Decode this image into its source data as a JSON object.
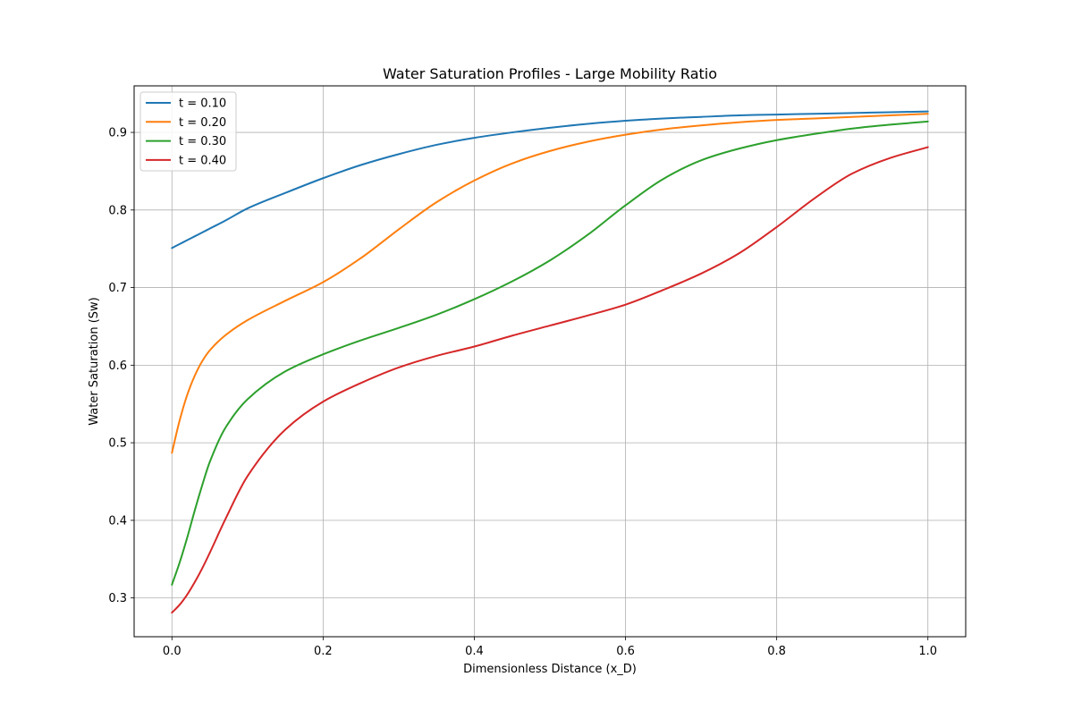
{
  "chart_data": {
    "type": "line",
    "title": "Water Saturation Profiles - Large Mobility Ratio",
    "xlabel": "Dimensionless Distance (x_D)",
    "ylabel": "Water Saturation (Sw)",
    "xlim": [
      -0.05,
      1.05
    ],
    "ylim": [
      0.25,
      0.96
    ],
    "xticks": [
      0.0,
      0.2,
      0.4,
      0.6,
      0.8,
      1.0
    ],
    "xtick_labels": [
      "0.0",
      "0.2",
      "0.4",
      "0.6",
      "0.8",
      "1.0"
    ],
    "yticks": [
      0.3,
      0.4,
      0.5,
      0.6,
      0.7,
      0.8,
      0.9
    ],
    "ytick_labels": [
      "0.3",
      "0.4",
      "0.5",
      "0.6",
      "0.7",
      "0.8",
      "0.9"
    ],
    "grid": true,
    "legend_position": "upper-left",
    "x": [
      0.0,
      0.01,
      0.02,
      0.03,
      0.04,
      0.05,
      0.07,
      0.1,
      0.15,
      0.2,
      0.25,
      0.3,
      0.35,
      0.4,
      0.45,
      0.5,
      0.55,
      0.6,
      0.65,
      0.7,
      0.75,
      0.8,
      0.85,
      0.9,
      0.95,
      1.0
    ],
    "series": [
      {
        "name": "t = 0.10",
        "color": "#1f77b4",
        "values": [
          0.751,
          0.756,
          0.761,
          0.766,
          0.771,
          0.776,
          0.786,
          0.802,
          0.822,
          0.841,
          0.858,
          0.872,
          0.884,
          0.893,
          0.9,
          0.906,
          0.911,
          0.915,
          0.918,
          0.92,
          0.922,
          0.923,
          0.924,
          0.925,
          0.926,
          0.927
        ]
      },
      {
        "name": "t = 0.20",
        "color": "#ff7f0e",
        "values": [
          0.487,
          0.528,
          0.561,
          0.586,
          0.605,
          0.619,
          0.638,
          0.658,
          0.683,
          0.707,
          0.738,
          0.775,
          0.81,
          0.838,
          0.86,
          0.876,
          0.888,
          0.897,
          0.904,
          0.909,
          0.913,
          0.916,
          0.918,
          0.92,
          0.922,
          0.924
        ]
      },
      {
        "name": "t = 0.30",
        "color": "#2ca02c",
        "values": [
          0.317,
          0.345,
          0.377,
          0.412,
          0.445,
          0.475,
          0.518,
          0.556,
          0.592,
          0.614,
          0.632,
          0.648,
          0.665,
          0.685,
          0.708,
          0.735,
          0.768,
          0.806,
          0.84,
          0.864,
          0.879,
          0.89,
          0.898,
          0.905,
          0.91,
          0.914
        ]
      },
      {
        "name": "t = 0.40",
        "color": "#d62728",
        "values": [
          0.281,
          0.291,
          0.304,
          0.32,
          0.338,
          0.358,
          0.4,
          0.457,
          0.517,
          0.553,
          0.577,
          0.597,
          0.612,
          0.624,
          0.638,
          0.651,
          0.664,
          0.678,
          0.697,
          0.718,
          0.744,
          0.778,
          0.815,
          0.847,
          0.867,
          0.881
        ]
      }
    ]
  }
}
